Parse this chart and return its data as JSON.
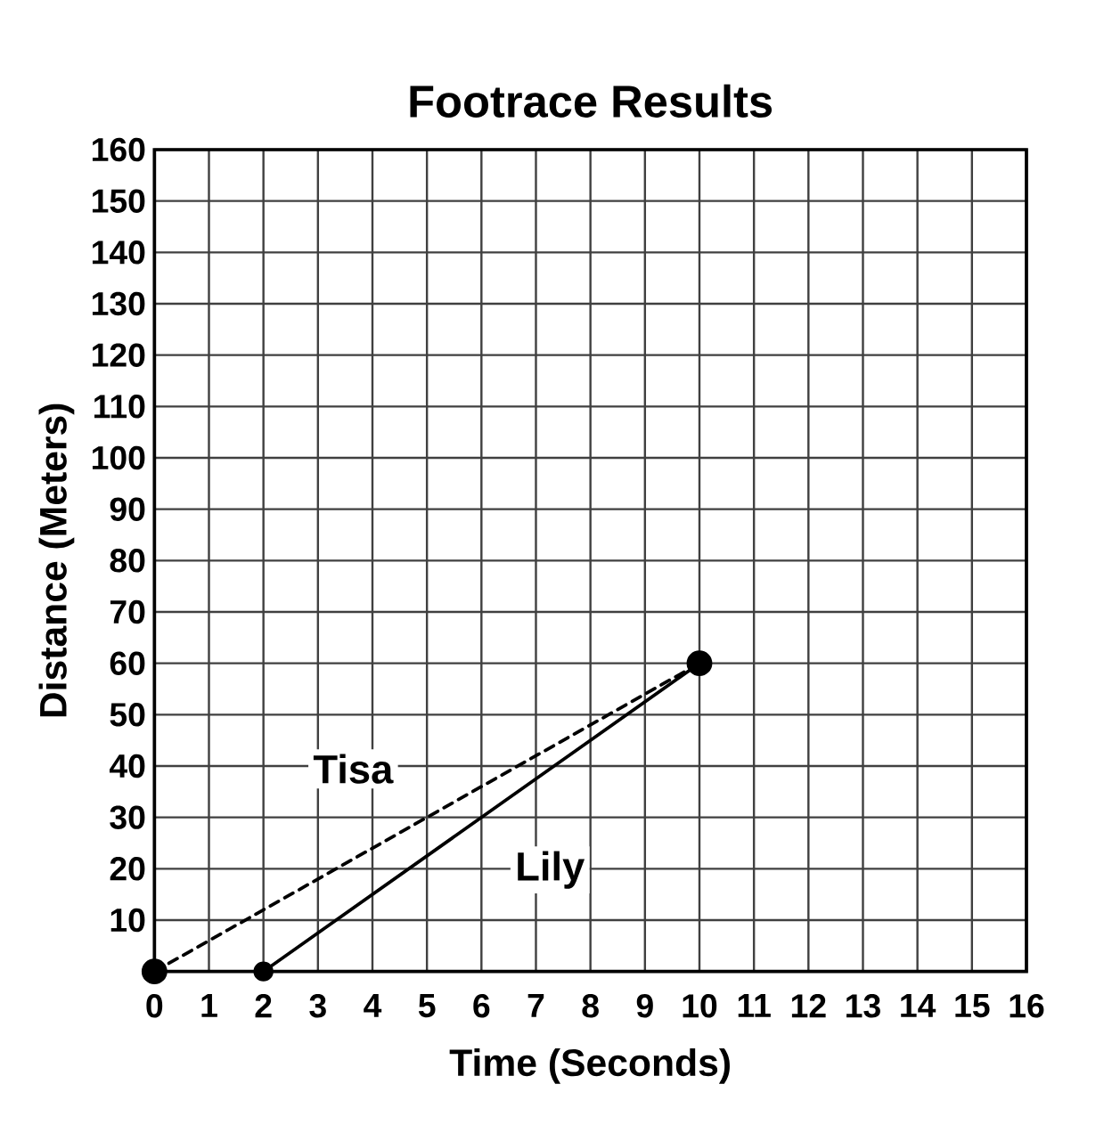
{
  "chart_data": {
    "type": "line",
    "title": "Footrace Results",
    "xlabel": "Time (Seconds)",
    "ylabel": "Distance (Meters)",
    "series": [
      {
        "name": "Tisa",
        "color": "#000000",
        "x": [
          0,
          10
        ],
        "values": [
          0,
          60
        ],
        "line_style": "dashed"
      },
      {
        "name": "Lily",
        "color": "#000000",
        "x": [
          2,
          10
        ],
        "values": [
          0,
          60
        ],
        "line_style": "solid"
      }
    ],
    "xlim": [
      0,
      16
    ],
    "xticks": [
      0,
      1,
      2,
      3,
      4,
      5,
      6,
      7,
      8,
      9,
      10,
      11,
      12,
      13,
      14,
      15,
      16
    ],
    "ylim": [
      0,
      160
    ],
    "yticks": [
      10,
      20,
      30,
      40,
      50,
      60,
      70,
      80,
      90,
      100,
      110,
      120,
      130,
      140,
      150,
      160
    ],
    "grid": true,
    "marker": "circle",
    "legend": false
  }
}
